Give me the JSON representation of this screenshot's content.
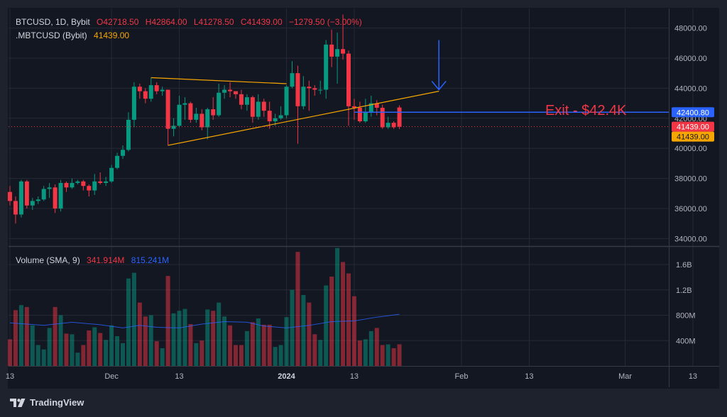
{
  "legend": {
    "symbol": "BTCUSD, 1D, Bybit",
    "open": "O42718.50",
    "high": "H42864.00",
    "low": "L41278.50",
    "close": "C41439.00",
    "change": "−1279.50 (−3.00%)",
    "index_name": ".MBTCUSD (Bybit)",
    "index_value": "41439.00",
    "volume_label": "Volume (SMA, 9)",
    "volume_value": "341.914M",
    "volume_sma": "815.241M"
  },
  "annotation": {
    "exit_text": "Exit - $42.4K"
  },
  "price_tags": {
    "exit": "42400.80",
    "last": "41439.00",
    "index": "41439.00"
  },
  "brand": "TradingView",
  "colors": {
    "background": "#1e222d",
    "pane": "#131722",
    "up": "#089981",
    "down": "#f23645",
    "trendline": "#f7a600",
    "exit_line": "#2962ff",
    "volume_sma": "#2962ff"
  },
  "chart_data": {
    "type": "candlestick",
    "symbol": "BTCUSD",
    "interval": "1D",
    "exchange": "Bybit",
    "price_axis": {
      "ticks": [
        "48000.00",
        "46000.00",
        "44000.00",
        "42000.00",
        "40000.00",
        "38000.00",
        "36000.00",
        "34000.00"
      ],
      "range": [
        33500,
        49300
      ]
    },
    "volume_axis": {
      "ticks": [
        "1.6B",
        "1.2B",
        "800M",
        "400M"
      ],
      "range": [
        0,
        1880000000
      ]
    },
    "time_axis": {
      "labels": [
        "13",
        "Dec",
        "13",
        "2024",
        "13",
        "Feb",
        "13",
        "Mar",
        "13"
      ],
      "label_dates": [
        "2023-11-13",
        "2023-12-01",
        "2023-12-13",
        "2024-01-01",
        "2024-01-13",
        "2024-02-01",
        "2024-02-13",
        "2024-03-01",
        "2024-03-13"
      ]
    },
    "candles": [
      {
        "date": "2023-11-13",
        "o": 37100,
        "h": 37500,
        "l": 36200,
        "c": 36500,
        "v": 420000000
      },
      {
        "date": "2023-11-14",
        "o": 36500,
        "h": 36800,
        "l": 35000,
        "c": 35600,
        "v": 880000000
      },
      {
        "date": "2023-11-15",
        "o": 35600,
        "h": 37900,
        "l": 35400,
        "c": 37800,
        "v": 960000000
      },
      {
        "date": "2023-11-16",
        "o": 37800,
        "h": 37900,
        "l": 36000,
        "c": 36200,
        "v": 930000000
      },
      {
        "date": "2023-11-17",
        "o": 36200,
        "h": 36700,
        "l": 35900,
        "c": 36500,
        "v": 640000000
      },
      {
        "date": "2023-11-18",
        "o": 36500,
        "h": 36800,
        "l": 36300,
        "c": 36600,
        "v": 330000000
      },
      {
        "date": "2023-11-19",
        "o": 36600,
        "h": 37500,
        "l": 36500,
        "c": 37300,
        "v": 260000000
      },
      {
        "date": "2023-11-20",
        "o": 37300,
        "h": 37700,
        "l": 36700,
        "c": 37400,
        "v": 600000000
      },
      {
        "date": "2023-11-21",
        "o": 37400,
        "h": 37600,
        "l": 35700,
        "c": 36000,
        "v": 930000000
      },
      {
        "date": "2023-11-22",
        "o": 36000,
        "h": 37900,
        "l": 35800,
        "c": 37700,
        "v": 800000000
      },
      {
        "date": "2023-11-23",
        "o": 37700,
        "h": 37800,
        "l": 37100,
        "c": 37400,
        "v": 510000000
      },
      {
        "date": "2023-11-24",
        "o": 37400,
        "h": 38000,
        "l": 37300,
        "c": 37700,
        "v": 500000000
      },
      {
        "date": "2023-11-25",
        "o": 37700,
        "h": 37900,
        "l": 37600,
        "c": 37800,
        "v": 210000000
      },
      {
        "date": "2023-11-26",
        "o": 37800,
        "h": 37900,
        "l": 37200,
        "c": 37500,
        "v": 330000000
      },
      {
        "date": "2023-11-27",
        "o": 37500,
        "h": 37600,
        "l": 36800,
        "c": 37200,
        "v": 560000000
      },
      {
        "date": "2023-11-28",
        "o": 37200,
        "h": 38300,
        "l": 36900,
        "c": 37800,
        "v": 610000000
      },
      {
        "date": "2023-11-29",
        "o": 37800,
        "h": 38400,
        "l": 37600,
        "c": 37700,
        "v": 520000000
      },
      {
        "date": "2023-11-30",
        "o": 37700,
        "h": 38100,
        "l": 37500,
        "c": 37800,
        "v": 410000000
      },
      {
        "date": "2023-12-01",
        "o": 37800,
        "h": 38900,
        "l": 37700,
        "c": 38700,
        "v": 640000000
      },
      {
        "date": "2023-12-02",
        "o": 38700,
        "h": 39700,
        "l": 38600,
        "c": 39500,
        "v": 470000000
      },
      {
        "date": "2023-12-03",
        "o": 39500,
        "h": 40200,
        "l": 39300,
        "c": 39900,
        "v": 360000000
      },
      {
        "date": "2023-12-04",
        "o": 39900,
        "h": 42400,
        "l": 39800,
        "c": 41900,
        "v": 1380000000
      },
      {
        "date": "2023-12-05",
        "o": 41900,
        "h": 44400,
        "l": 41400,
        "c": 44100,
        "v": 1470000000
      },
      {
        "date": "2023-12-06",
        "o": 44100,
        "h": 44300,
        "l": 43300,
        "c": 43800,
        "v": 1000000000
      },
      {
        "date": "2023-12-07",
        "o": 43800,
        "h": 44000,
        "l": 43000,
        "c": 43300,
        "v": 780000000
      },
      {
        "date": "2023-12-08",
        "o": 43300,
        "h": 44700,
        "l": 43100,
        "c": 44200,
        "v": 800000000
      },
      {
        "date": "2023-12-09",
        "o": 44200,
        "h": 44400,
        "l": 43600,
        "c": 43800,
        "v": 390000000
      },
      {
        "date": "2023-12-10",
        "o": 43800,
        "h": 44100,
        "l": 43500,
        "c": 43900,
        "v": 280000000
      },
      {
        "date": "2023-12-11",
        "o": 43900,
        "h": 43900,
        "l": 40200,
        "c": 41300,
        "v": 1420000000
      },
      {
        "date": "2023-12-12",
        "o": 41300,
        "h": 42000,
        "l": 40800,
        "c": 41500,
        "v": 830000000
      },
      {
        "date": "2023-12-13",
        "o": 41500,
        "h": 43500,
        "l": 41400,
        "c": 42900,
        "v": 870000000
      },
      {
        "date": "2023-12-14",
        "o": 42900,
        "h": 43400,
        "l": 41900,
        "c": 43000,
        "v": 900000000
      },
      {
        "date": "2023-12-15",
        "o": 43000,
        "h": 43100,
        "l": 41700,
        "c": 41900,
        "v": 660000000
      },
      {
        "date": "2023-12-16",
        "o": 41900,
        "h": 42700,
        "l": 41700,
        "c": 42300,
        "v": 360000000
      },
      {
        "date": "2023-12-17",
        "o": 42300,
        "h": 42600,
        "l": 41200,
        "c": 41400,
        "v": 400000000
      },
      {
        "date": "2023-12-18",
        "o": 41400,
        "h": 42700,
        "l": 40600,
        "c": 42600,
        "v": 890000000
      },
      {
        "date": "2023-12-19",
        "o": 42600,
        "h": 43400,
        "l": 41900,
        "c": 42200,
        "v": 870000000
      },
      {
        "date": "2023-12-20",
        "o": 42200,
        "h": 44300,
        "l": 42100,
        "c": 43700,
        "v": 1000000000
      },
      {
        "date": "2023-12-21",
        "o": 43700,
        "h": 44200,
        "l": 43300,
        "c": 43900,
        "v": 780000000
      },
      {
        "date": "2023-12-22",
        "o": 43900,
        "h": 44400,
        "l": 43400,
        "c": 43800,
        "v": 640000000
      },
      {
        "date": "2023-12-23",
        "o": 43800,
        "h": 43800,
        "l": 43300,
        "c": 43600,
        "v": 330000000
      },
      {
        "date": "2023-12-24",
        "o": 43600,
        "h": 43900,
        "l": 42600,
        "c": 42900,
        "v": 330000000
      },
      {
        "date": "2023-12-25",
        "o": 42900,
        "h": 43600,
        "l": 42500,
        "c": 43400,
        "v": 550000000
      },
      {
        "date": "2023-12-26",
        "o": 43400,
        "h": 43500,
        "l": 41700,
        "c": 42100,
        "v": 690000000
      },
      {
        "date": "2023-12-27",
        "o": 42100,
        "h": 43600,
        "l": 41900,
        "c": 43100,
        "v": 750000000
      },
      {
        "date": "2023-12-28",
        "o": 43100,
        "h": 43300,
        "l": 42100,
        "c": 42500,
        "v": 650000000
      },
      {
        "date": "2023-12-29",
        "o": 42500,
        "h": 43100,
        "l": 41300,
        "c": 41800,
        "v": 650000000
      },
      {
        "date": "2023-12-30",
        "o": 41800,
        "h": 42300,
        "l": 41500,
        "c": 42000,
        "v": 300000000
      },
      {
        "date": "2023-12-31",
        "o": 42000,
        "h": 42800,
        "l": 41900,
        "c": 42200,
        "v": 330000000
      },
      {
        "date": "2024-01-01",
        "o": 42200,
        "h": 44200,
        "l": 42000,
        "c": 44100,
        "v": 770000000
      },
      {
        "date": "2024-01-02",
        "o": 44100,
        "h": 45800,
        "l": 44000,
        "c": 45000,
        "v": 1200000000
      },
      {
        "date": "2024-01-03",
        "o": 45000,
        "h": 45500,
        "l": 40300,
        "c": 42800,
        "v": 1800000000
      },
      {
        "date": "2024-01-04",
        "o": 42800,
        "h": 44800,
        "l": 42600,
        "c": 44100,
        "v": 1120000000
      },
      {
        "date": "2024-01-05",
        "o": 44100,
        "h": 44500,
        "l": 42500,
        "c": 44000,
        "v": 1000000000
      },
      {
        "date": "2024-01-06",
        "o": 44000,
        "h": 44200,
        "l": 43500,
        "c": 43900,
        "v": 500000000
      },
      {
        "date": "2024-01-07",
        "o": 43900,
        "h": 44500,
        "l": 43600,
        "c": 43900,
        "v": 410000000
      },
      {
        "date": "2024-01-08",
        "o": 43900,
        "h": 47200,
        "l": 43300,
        "c": 46900,
        "v": 1270000000
      },
      {
        "date": "2024-01-09",
        "o": 46900,
        "h": 47900,
        "l": 45400,
        "c": 46100,
        "v": 1410000000
      },
      {
        "date": "2024-01-10",
        "o": 46100,
        "h": 47700,
        "l": 44300,
        "c": 46600,
        "v": 1860000000
      },
      {
        "date": "2024-01-11",
        "o": 46600,
        "h": 48900,
        "l": 45900,
        "c": 46300,
        "v": 1640000000
      },
      {
        "date": "2024-01-12",
        "o": 46300,
        "h": 46500,
        "l": 41500,
        "c": 42800,
        "v": 1460000000
      },
      {
        "date": "2024-01-13",
        "o": 42800,
        "h": 43300,
        "l": 41900,
        "c": 42700,
        "v": 1100000000
      },
      {
        "date": "2024-01-14",
        "o": 42700,
        "h": 43100,
        "l": 41700,
        "c": 41800,
        "v": 400000000
      },
      {
        "date": "2024-01-15",
        "o": 41800,
        "h": 43300,
        "l": 41700,
        "c": 42400,
        "v": 420000000
      },
      {
        "date": "2024-01-16",
        "o": 42400,
        "h": 43500,
        "l": 42100,
        "c": 43000,
        "v": 550000000
      },
      {
        "date": "2024-01-17",
        "o": 43000,
        "h": 43200,
        "l": 42200,
        "c": 42700,
        "v": 600000000
      },
      {
        "date": "2024-01-18",
        "o": 42700,
        "h": 42900,
        "l": 41300,
        "c": 41400,
        "v": 330000000
      },
      {
        "date": "2024-01-19",
        "o": 41400,
        "h": 42100,
        "l": 41300,
        "c": 41700,
        "v": 340000000
      },
      {
        "date": "2024-01-20",
        "o": 41700,
        "h": 41800,
        "l": 41300,
        "c": 41400,
        "v": 280000000
      },
      {
        "date": "2024-01-21",
        "o": 42718.5,
        "h": 42864,
        "l": 41278.5,
        "c": 41439,
        "v": 341914000
      }
    ],
    "volume_sma": [
      {
        "date": "2023-11-13",
        "v": 680000000
      },
      {
        "date": "2023-11-19",
        "v": 640000000
      },
      {
        "date": "2023-11-24",
        "v": 690000000
      },
      {
        "date": "2023-11-29",
        "v": 650000000
      },
      {
        "date": "2023-12-03",
        "v": 600000000
      },
      {
        "date": "2023-12-06",
        "v": 640000000
      },
      {
        "date": "2023-12-09",
        "v": 610000000
      },
      {
        "date": "2023-12-13",
        "v": 600000000
      },
      {
        "date": "2023-12-17",
        "v": 660000000
      },
      {
        "date": "2023-12-21",
        "v": 700000000
      },
      {
        "date": "2023-12-25",
        "v": 690000000
      },
      {
        "date": "2023-12-28",
        "v": 630000000
      },
      {
        "date": "2024-01-01",
        "v": 600000000
      },
      {
        "date": "2024-01-05",
        "v": 640000000
      },
      {
        "date": "2024-01-09",
        "v": 700000000
      },
      {
        "date": "2024-01-13",
        "v": 710000000
      },
      {
        "date": "2024-01-17",
        "v": 770000000
      },
      {
        "date": "2024-01-21",
        "v": 815241000
      }
    ],
    "trendlines": [
      {
        "name": "upper",
        "from": {
          "date": "2023-12-08",
          "price": 44700
        },
        "to": {
          "date": "2024-01-01",
          "price": 44300
        }
      },
      {
        "name": "lower",
        "from": {
          "date": "2023-12-11",
          "price": 40200
        },
        "to": {
          "date": "2024-01-28",
          "price": 43800
        }
      }
    ],
    "exit_line": {
      "price": 42400.8,
      "from_date": "2024-01-13"
    },
    "last_price": 41439.0,
    "arrow": {
      "date": "2024-01-28",
      "from_price": 47200,
      "to_price": 43900
    }
  }
}
